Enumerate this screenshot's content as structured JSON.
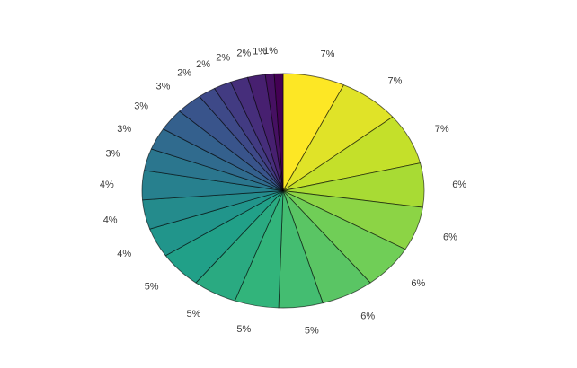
{
  "app": {
    "background_color": "#ffffff"
  },
  "chart_data": {
    "type": "pie",
    "title": "",
    "subtitle": "",
    "legend": "none",
    "label_position": "outside",
    "start_angle_deg": 90,
    "clockwise": true,
    "total_percent": 99,
    "values": [
      7,
      7,
      7,
      6,
      6,
      6,
      6,
      5,
      5,
      5,
      5,
      4,
      4,
      4,
      3,
      3,
      3,
      3,
      2,
      2,
      2,
      2,
      1,
      1
    ],
    "labels": [
      "7%",
      "7%",
      "7%",
      "6%",
      "6%",
      "6%",
      "6%",
      "5%",
      "5%",
      "5%",
      "5%",
      "4%",
      "4%",
      "4%",
      "3%",
      "3%",
      "3%",
      "3%",
      "2%",
      "2%",
      "2%",
      "2%",
      "1%",
      "1%"
    ],
    "colors": [
      "#FDE725",
      "#E0E328",
      "#C4E02A",
      "#A8DB34",
      "#8CD445",
      "#70CE57",
      "#5AC564",
      "#44BD71",
      "#32B47B",
      "#2AAA81",
      "#21A088",
      "#21958B",
      "#248B8C",
      "#27808E",
      "#2B768E",
      "#306B8E",
      "#34608D",
      "#39548B",
      "#3E4988",
      "#423B82",
      "#462E7B",
      "#472070",
      "#461062",
      "#440154"
    ],
    "palette_name": "viridis-reversed",
    "label_color": "#3a3a3a",
    "slice_border_color": "#000000",
    "slice_border_opacity": 0.6
  }
}
